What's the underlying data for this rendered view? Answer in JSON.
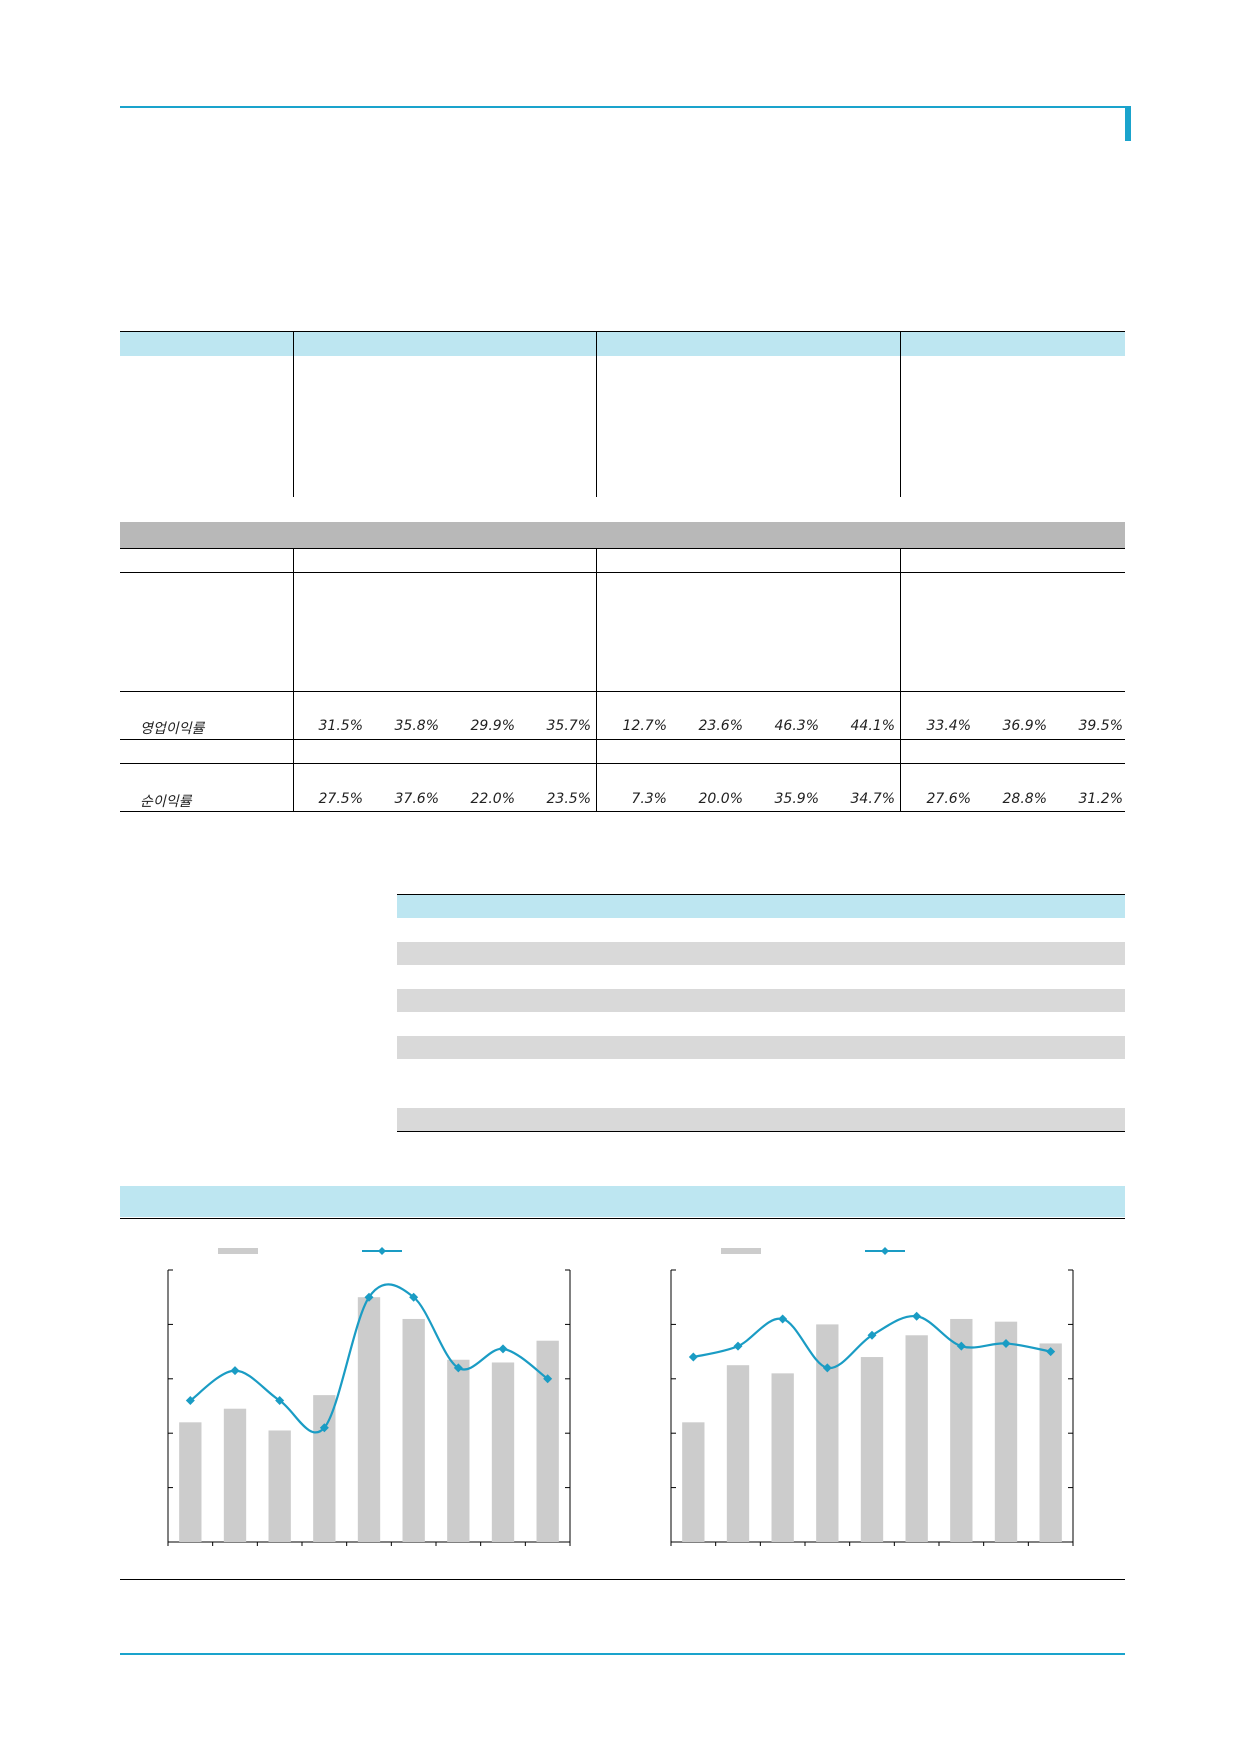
{
  "financial_table": {
    "rows": [
      {
        "label": "영업이익률",
        "values": [
          "31.5%",
          "35.8%",
          "29.9%",
          "35.7%",
          "12.7%",
          "23.6%",
          "46.3%",
          "44.1%",
          "33.4%",
          "36.9%",
          "39.5%"
        ]
      },
      {
        "label": "순이익률",
        "values": [
          "27.5%",
          "37.6%",
          "22.0%",
          "23.5%",
          "7.3%",
          "20.0%",
          "35.9%",
          "34.7%",
          "27.6%",
          "28.8%",
          "31.2%"
        ]
      }
    ]
  },
  "colors": {
    "accent": "#1aa3cc",
    "header_band": "#bde6f1",
    "gray_band": "#b8b8b8",
    "light_band": "#d9d9d9",
    "bar": "#cccccc",
    "line": "#1a9cc4"
  },
  "chart_data": [
    {
      "type": "bar",
      "bars": [
        44,
        49,
        41,
        54,
        90,
        82,
        67,
        66,
        74
      ],
      "line": [
        52,
        63,
        52,
        42,
        90,
        90,
        64,
        71,
        60
      ],
      "y_axis_range": [
        0,
        100
      ],
      "legend_placement": "top"
    },
    {
      "type": "bar",
      "bars": [
        44,
        65,
        62,
        80,
        68,
        76,
        82,
        81,
        73
      ],
      "line": [
        68,
        72,
        82,
        64,
        76,
        83,
        72,
        73,
        70
      ],
      "y_axis_range": [
        0,
        100
      ],
      "legend_placement": "top"
    }
  ]
}
